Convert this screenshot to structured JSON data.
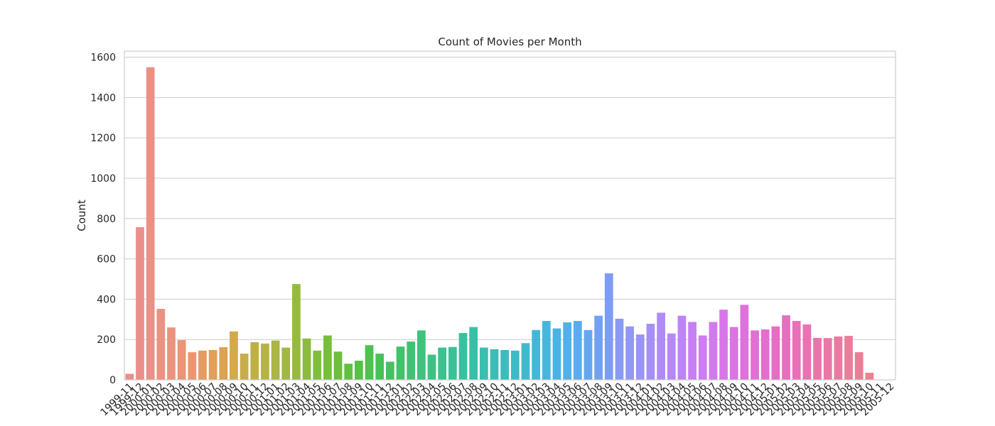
{
  "chart_data": {
    "type": "bar",
    "title": "Count of Movies per Month",
    "xlabel": "",
    "ylabel": "Count",
    "ylim": [
      0,
      1630
    ],
    "yticks": [
      0,
      200,
      400,
      600,
      800,
      1000,
      1200,
      1400,
      1600
    ],
    "grid": "y",
    "categories": [
      "1999-11",
      "1999-12",
      "2000-01",
      "2000-02",
      "2000-03",
      "2000-04",
      "2000-05",
      "2000-06",
      "2000-07",
      "2000-08",
      "2000-09",
      "2000-10",
      "2000-11",
      "2000-12",
      "2001-01",
      "2001-02",
      "2001-03",
      "2001-04",
      "2001-05",
      "2001-06",
      "2001-07",
      "2001-08",
      "2001-09",
      "2001-10",
      "2001-11",
      "2001-12",
      "2002-01",
      "2002-02",
      "2002-03",
      "2002-04",
      "2002-05",
      "2002-06",
      "2002-07",
      "2002-08",
      "2002-09",
      "2002-10",
      "2002-11",
      "2002-12",
      "2003-01",
      "2003-02",
      "2003-03",
      "2003-04",
      "2003-05",
      "2003-06",
      "2003-07",
      "2003-08",
      "2003-09",
      "2003-10",
      "2003-11",
      "2003-12",
      "2004-01",
      "2004-02",
      "2004-03",
      "2004-04",
      "2004-05",
      "2004-06",
      "2004-07",
      "2004-08",
      "2004-09",
      "2004-10",
      "2004-11",
      "2004-12",
      "2005-01",
      "2005-02",
      "2005-03",
      "2005-04",
      "2005-05",
      "2005-06",
      "2005-07",
      "2005-08",
      "2005-09",
      "2005-10",
      "2005-11",
      "2005-12"
    ],
    "values": [
      30,
      757,
      1550,
      352,
      260,
      197,
      137,
      145,
      148,
      162,
      240,
      130,
      187,
      180,
      195,
      160,
      475,
      205,
      145,
      220,
      140,
      80,
      95,
      172,
      130,
      90,
      165,
      190,
      245,
      125,
      160,
      163,
      232,
      262,
      160,
      152,
      148,
      145,
      182,
      247,
      292,
      255,
      285,
      292,
      247,
      318,
      528,
      303,
      265,
      225,
      278,
      333,
      230,
      318,
      287,
      220,
      287,
      348,
      262,
      372,
      245,
      250,
      265,
      320,
      292,
      275,
      208,
      207,
      215,
      218,
      137,
      35,
      0,
      0
    ],
    "colors": [
      "#ea8e8e",
      "#ea8f8b",
      "#eb9087",
      "#eb9282",
      "#ec937d",
      "#ec9477",
      "#ec9670",
      "#e89b5e",
      "#e19f58",
      "#daa452",
      "#d3a94c",
      "#c9ad4a",
      "#bfb046",
      "#b5b345",
      "#abb644",
      "#a0b841",
      "#96ba3f",
      "#8bbc3e",
      "#81bd3c",
      "#77be3c",
      "#6dbf3d",
      "#62c041",
      "#57c146",
      "#4dc24e",
      "#45c257",
      "#43c261",
      "#41c26b",
      "#40c274",
      "#3fc27d",
      "#3dc286",
      "#3cc18f",
      "#3bc197",
      "#3ac0a0",
      "#39bfa8",
      "#39beb0",
      "#3abdb7",
      "#3bbcbf",
      "#3cbbc6",
      "#3fb9cd",
      "#42b8d4",
      "#46b6db",
      "#4bb3e2",
      "#52b0e8",
      "#5babed",
      "#66a6f0",
      "#72a1f2",
      "#7d9cf3",
      "#889af5",
      "#9297f6",
      "#9c93f7",
      "#a58ff7",
      "#ae8bf7",
      "#b687f7",
      "#be83f6",
      "#c67ff5",
      "#cd7cf2",
      "#d279ee",
      "#d776e9",
      "#db73e3",
      "#df71dc",
      "#e26fd5",
      "#e46ecd",
      "#e66dc6",
      "#e76ebf",
      "#e870b8",
      "#e972b2",
      "#ea74ab",
      "#ea77a5",
      "#eb79a0",
      "#eb7c9a",
      "#eb7e95",
      "#eb818f",
      "#eb848a",
      "#ea8785"
    ]
  }
}
